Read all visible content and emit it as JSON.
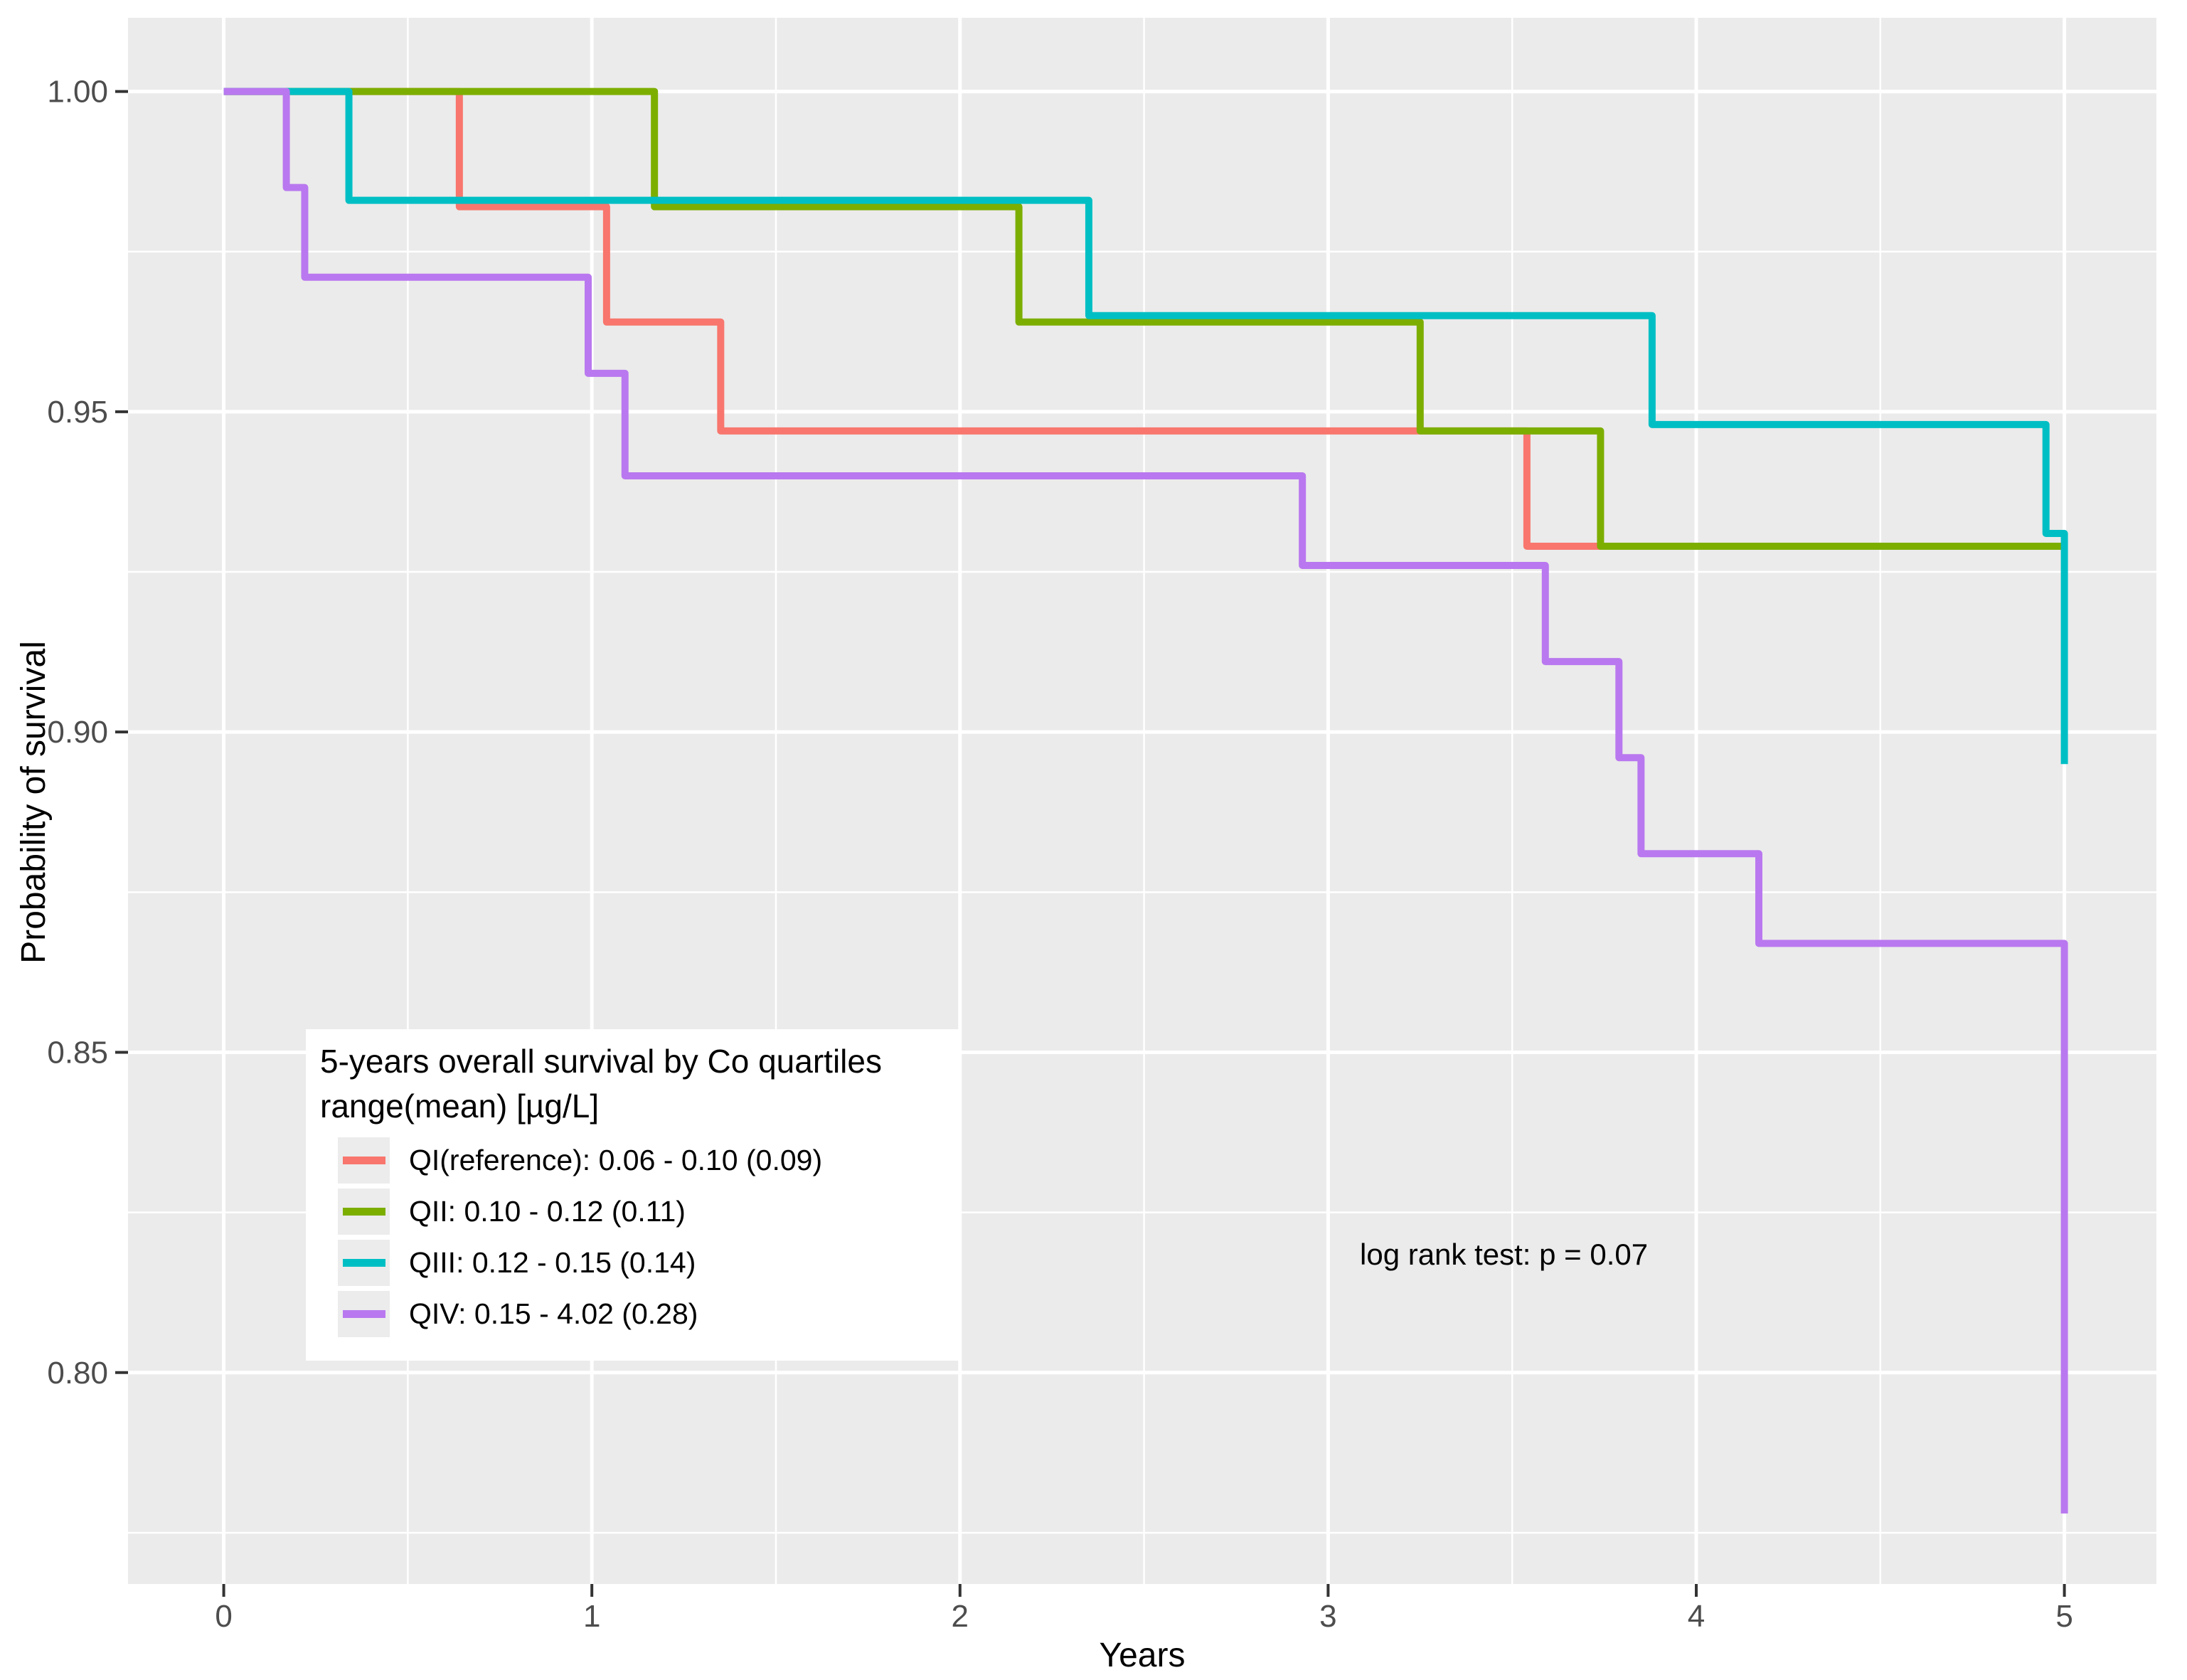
{
  "figure": {
    "x_axis_title": "Years",
    "y_axis_title": "Probability of survival",
    "x_tick_labels": [
      "0",
      "1",
      "2",
      "3",
      "4",
      "5"
    ],
    "y_tick_labels": [
      "0.80",
      "0.85",
      "0.90",
      "0.95",
      "1.00"
    ],
    "annotation": "log rank test: p = 0.07"
  },
  "legend": {
    "title_line1": "5-years overall survival by Co quartiles",
    "title_line2": "range(mean) [µg/L]"
  },
  "chart_data": {
    "type": "line",
    "subtype": "kaplan-meier-step",
    "title": "5-years overall survival by Co quartiles range(mean) [µg/L]",
    "xlabel": "Years",
    "ylabel": "Probability of survival",
    "xlim": [
      -0.26,
      5.25
    ],
    "ylim": [
      0.767,
      1.0115
    ],
    "x_major_ticks": [
      0,
      1,
      2,
      3,
      4,
      5
    ],
    "x_minor_ticks": [
      0.5,
      1.5,
      2.5,
      3.5,
      4.5
    ],
    "y_major_ticks": [
      0.8,
      0.85,
      0.9,
      0.95,
      1.0
    ],
    "y_minor_ticks": [
      0.775,
      0.825,
      0.875,
      0.925,
      0.975
    ],
    "grid": "white major and minor gridlines on gray panel",
    "panel_bg": "#EBEBEB",
    "gridline_color": "#FFFFFF",
    "tick_color": "#333333",
    "legend_position": "inside lower-left",
    "annotation": {
      "text": "log rank test: p = 0.07",
      "x": 3.55,
      "y": 0.818
    },
    "series": [
      {
        "name": "QI(reference): 0.06 - 0.10 (0.09)",
        "color": "#F8766D",
        "end_x": 5.0,
        "points": [
          [
            0,
            1.0
          ],
          [
            0.64,
            0.982
          ],
          [
            1.04,
            0.964
          ],
          [
            1.35,
            0.947
          ],
          [
            3.54,
            0.929
          ]
        ]
      },
      {
        "name": "QII: 0.10 - 0.12 (0.11)",
        "color": "#7CAE00",
        "end_x": 5.0,
        "points": [
          [
            0,
            1.0
          ],
          [
            1.17,
            0.982
          ],
          [
            2.16,
            0.964
          ],
          [
            3.25,
            0.947
          ],
          [
            3.74,
            0.929
          ]
        ]
      },
      {
        "name": "QIII: 0.12 - 0.15 (0.14)",
        "color": "#00BFC4",
        "end_x": 5.0,
        "points": [
          [
            0,
            1.0
          ],
          [
            0.34,
            0.983
          ],
          [
            2.35,
            0.965
          ],
          [
            3.88,
            0.948
          ],
          [
            4.95,
            0.931
          ],
          [
            5.0,
            0.895
          ]
        ]
      },
      {
        "name": "QIV: 0.15 - 4.02 (0.28)",
        "color": "#B978EF",
        "end_x": 5.0,
        "points": [
          [
            0,
            1.0
          ],
          [
            0.17,
            0.985
          ],
          [
            0.22,
            0.971
          ],
          [
            0.99,
            0.956
          ],
          [
            1.09,
            0.94
          ],
          [
            2.93,
            0.926
          ],
          [
            3.59,
            0.911
          ],
          [
            3.79,
            0.896
          ],
          [
            3.85,
            0.881
          ],
          [
            4.17,
            0.867
          ],
          [
            5.0,
            0.778
          ]
        ]
      }
    ]
  }
}
